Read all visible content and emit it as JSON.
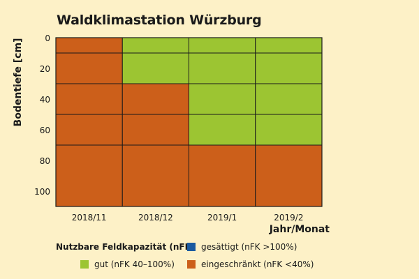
{
  "chart_data": {
    "type": "heatmap",
    "title": "Waldklimastation Würzburg",
    "ylabel": "Bodentiefe [cm]",
    "xlabel": "Jahr/Monat",
    "categories": [
      "2018/11",
      "2018/12",
      "2019/1",
      "2019/2"
    ],
    "ylim": [
      0,
      110
    ],
    "yticks": [
      0,
      20,
      40,
      60,
      80,
      100
    ],
    "depth_layers": [
      [
        0,
        10
      ],
      [
        10,
        30
      ],
      [
        30,
        50
      ],
      [
        50,
        70
      ],
      [
        70,
        110
      ]
    ],
    "cells": [
      [
        "eingeschraenkt",
        "gut",
        "gut",
        "gut"
      ],
      [
        "eingeschraenkt",
        "gut",
        "gut",
        "gut"
      ],
      [
        "eingeschraenkt",
        "eingeschraenkt",
        "gut",
        "gut"
      ],
      [
        "eingeschraenkt",
        "eingeschraenkt",
        "gut",
        "gut"
      ],
      [
        "eingeschraenkt",
        "eingeschraenkt",
        "eingeschraenkt",
        "eingeschraenkt"
      ]
    ],
    "legend": {
      "title": "Nutzbare Feldkapazität (nFK)",
      "items": [
        {
          "key": "gesaettigt",
          "label": "gesättigt (nFK >100%)",
          "color": "#1b5aa0"
        },
        {
          "key": "gut",
          "label": "gut (nFK 40–100%)",
          "color": "#9cc532"
        },
        {
          "key": "eingeschraenkt",
          "label": "eingeschränkt (nFK <40%)",
          "color": "#cc5f1a"
        }
      ]
    }
  }
}
